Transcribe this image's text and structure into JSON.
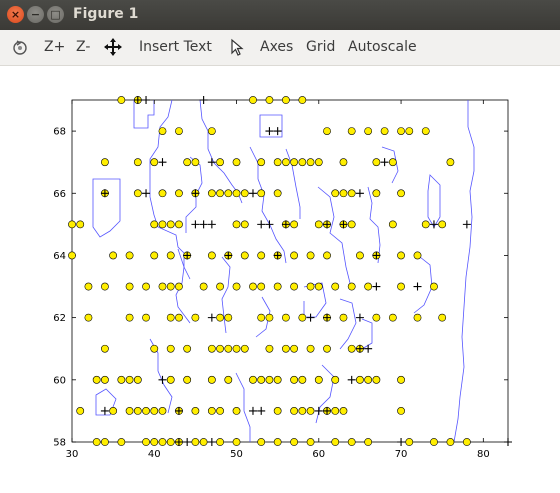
{
  "window": {
    "title": "Figure 1",
    "close_glyph": "×",
    "minimize_glyph": "−",
    "maximize_glyph": "□"
  },
  "toolbar": {
    "zoom_in_label": "Z+",
    "zoom_out_label": "Z-",
    "insert_text_label": "Insert Text",
    "axes_label": "Axes",
    "grid_label": "Grid",
    "autoscale_label": "Autoscale",
    "icons": [
      "rotate-icon",
      "pan-move-icon",
      "select-arrow-icon"
    ]
  },
  "chart_data": {
    "type": "scatter",
    "title": "",
    "xlabel": "",
    "ylabel": "",
    "xlim": [
      30,
      83
    ],
    "ylim": [
      58,
      69
    ],
    "xticks": [
      30,
      40,
      50,
      60,
      70,
      80
    ],
    "yticks": [
      58,
      60,
      62,
      64,
      66,
      68
    ],
    "xtick_labels": [
      "30",
      "40",
      "50",
      "60",
      "70",
      "80"
    ],
    "ytick_labels": [
      "58",
      "60",
      "62",
      "64",
      "66",
      "68"
    ],
    "grid": false,
    "legend": "none",
    "colors": {
      "circle_fill": "#ffee00",
      "circle_edge": "#000000",
      "contour": "#5555ff",
      "plus": "#000000"
    },
    "series": [
      {
        "marker": "circle",
        "points": [
          [
            36,
            69
          ],
          [
            38,
            69
          ],
          [
            52,
            69
          ],
          [
            54,
            69
          ],
          [
            56,
            69
          ],
          [
            58,
            69
          ],
          [
            41,
            68
          ],
          [
            43,
            68
          ],
          [
            47,
            68
          ],
          [
            61,
            68
          ],
          [
            64,
            68
          ],
          [
            66,
            68
          ],
          [
            68,
            68
          ],
          [
            70,
            68
          ],
          [
            71,
            68
          ],
          [
            73,
            68
          ],
          [
            34,
            67
          ],
          [
            38,
            67
          ],
          [
            40,
            67
          ],
          [
            44,
            67
          ],
          [
            45,
            67
          ],
          [
            48,
            67
          ],
          [
            50,
            67
          ],
          [
            53,
            67
          ],
          [
            55,
            67
          ],
          [
            56,
            67
          ],
          [
            57,
            67
          ],
          [
            58,
            67
          ],
          [
            59,
            67
          ],
          [
            60,
            67
          ],
          [
            63,
            67
          ],
          [
            67,
            67
          ],
          [
            69,
            67
          ],
          [
            76,
            67
          ],
          [
            34,
            66
          ],
          [
            38,
            66
          ],
          [
            41,
            66
          ],
          [
            43,
            66
          ],
          [
            45,
            66
          ],
          [
            47,
            66
          ],
          [
            48,
            66
          ],
          [
            49,
            66
          ],
          [
            50,
            66
          ],
          [
            51,
            66
          ],
          [
            53,
            66
          ],
          [
            55,
            66
          ],
          [
            62,
            66
          ],
          [
            63,
            66
          ],
          [
            64,
            66
          ],
          [
            67,
            66
          ],
          [
            70,
            66
          ],
          [
            30,
            65
          ],
          [
            31,
            65
          ],
          [
            40,
            65
          ],
          [
            41,
            65
          ],
          [
            42,
            65
          ],
          [
            43,
            65
          ],
          [
            50,
            65
          ],
          [
            51,
            65
          ],
          [
            56,
            65
          ],
          [
            57,
            65
          ],
          [
            60,
            65
          ],
          [
            61,
            65
          ],
          [
            63,
            65
          ],
          [
            64,
            65
          ],
          [
            69,
            65
          ],
          [
            73,
            65
          ],
          [
            75,
            65
          ],
          [
            30,
            64
          ],
          [
            35,
            64
          ],
          [
            37,
            64
          ],
          [
            40,
            64
          ],
          [
            42,
            64
          ],
          [
            44,
            64
          ],
          [
            47,
            64
          ],
          [
            49,
            64
          ],
          [
            51,
            64
          ],
          [
            53,
            64
          ],
          [
            55,
            64
          ],
          [
            57,
            64
          ],
          [
            59,
            64
          ],
          [
            61,
            64
          ],
          [
            65,
            64
          ],
          [
            67,
            64
          ],
          [
            70,
            64
          ],
          [
            72,
            64
          ],
          [
            32,
            63
          ],
          [
            34,
            63
          ],
          [
            37,
            63
          ],
          [
            39,
            63
          ],
          [
            41,
            63
          ],
          [
            42,
            63
          ],
          [
            43,
            63
          ],
          [
            46,
            63
          ],
          [
            48,
            63
          ],
          [
            50,
            63
          ],
          [
            52,
            63
          ],
          [
            53,
            63
          ],
          [
            55,
            63
          ],
          [
            57,
            63
          ],
          [
            59,
            63
          ],
          [
            60,
            63
          ],
          [
            62,
            63
          ],
          [
            64,
            63
          ],
          [
            66,
            63
          ],
          [
            70,
            63
          ],
          [
            74,
            63
          ],
          [
            32,
            62
          ],
          [
            37,
            62
          ],
          [
            39,
            62
          ],
          [
            42,
            62
          ],
          [
            43,
            62
          ],
          [
            45,
            62
          ],
          [
            48,
            62
          ],
          [
            49,
            62
          ],
          [
            53,
            62
          ],
          [
            54,
            62
          ],
          [
            56,
            62
          ],
          [
            58,
            62
          ],
          [
            61,
            62
          ],
          [
            63,
            62
          ],
          [
            67,
            62
          ],
          [
            69,
            62
          ],
          [
            72,
            62
          ],
          [
            75,
            62
          ],
          [
            34,
            61
          ],
          [
            40,
            61
          ],
          [
            42,
            61
          ],
          [
            44,
            61
          ],
          [
            47,
            61
          ],
          [
            48,
            61
          ],
          [
            49,
            61
          ],
          [
            50,
            61
          ],
          [
            51,
            61
          ],
          [
            54,
            61
          ],
          [
            56,
            61
          ],
          [
            57,
            61
          ],
          [
            59,
            61
          ],
          [
            61,
            61
          ],
          [
            64,
            61
          ],
          [
            65,
            61
          ],
          [
            33,
            60
          ],
          [
            34,
            60
          ],
          [
            36,
            60
          ],
          [
            37,
            60
          ],
          [
            38,
            60
          ],
          [
            42,
            60
          ],
          [
            44,
            60
          ],
          [
            47,
            60
          ],
          [
            49,
            60
          ],
          [
            52,
            60
          ],
          [
            53,
            60
          ],
          [
            54,
            60
          ],
          [
            55,
            60
          ],
          [
            57,
            60
          ],
          [
            58,
            60
          ],
          [
            60,
            60
          ],
          [
            62,
            60
          ],
          [
            65,
            60
          ],
          [
            66,
            60
          ],
          [
            67,
            60
          ],
          [
            70,
            60
          ],
          [
            31,
            59
          ],
          [
            35,
            59
          ],
          [
            37,
            59
          ],
          [
            38,
            59
          ],
          [
            39,
            59
          ],
          [
            40,
            59
          ],
          [
            41,
            59
          ],
          [
            43,
            59
          ],
          [
            45,
            59
          ],
          [
            47,
            59
          ],
          [
            48,
            59
          ],
          [
            50,
            59
          ],
          [
            55,
            59
          ],
          [
            57,
            59
          ],
          [
            58,
            59
          ],
          [
            59,
            59
          ],
          [
            61,
            59
          ],
          [
            62,
            59
          ],
          [
            63,
            59
          ],
          [
            70,
            59
          ],
          [
            33,
            58
          ],
          [
            34,
            58
          ],
          [
            36,
            58
          ],
          [
            39,
            58
          ],
          [
            40,
            58
          ],
          [
            41,
            58
          ],
          [
            42,
            58
          ],
          [
            43,
            58
          ],
          [
            45,
            58
          ],
          [
            46,
            58
          ],
          [
            48,
            58
          ],
          [
            50,
            58
          ],
          [
            53,
            58
          ],
          [
            55,
            58
          ],
          [
            57,
            58
          ],
          [
            59,
            58
          ],
          [
            62,
            58
          ],
          [
            64,
            58
          ],
          [
            66,
            58
          ],
          [
            71,
            58
          ],
          [
            74,
            58
          ],
          [
            76,
            58
          ],
          [
            78,
            58
          ]
        ]
      },
      {
        "marker": "plus",
        "points": [
          [
            38,
            69
          ],
          [
            39,
            69
          ],
          [
            46,
            69
          ],
          [
            54,
            68
          ],
          [
            55,
            68
          ],
          [
            41,
            67
          ],
          [
            47,
            67
          ],
          [
            68,
            67
          ],
          [
            34,
            66
          ],
          [
            39,
            66
          ],
          [
            45,
            66
          ],
          [
            52,
            66
          ],
          [
            65,
            66
          ],
          [
            45,
            65
          ],
          [
            46,
            65
          ],
          [
            47,
            65
          ],
          [
            53,
            65
          ],
          [
            54,
            65
          ],
          [
            56,
            65
          ],
          [
            61,
            65
          ],
          [
            63,
            65
          ],
          [
            74,
            65
          ],
          [
            78,
            65
          ],
          [
            44,
            64
          ],
          [
            49,
            64
          ],
          [
            55,
            64
          ],
          [
            67,
            64
          ],
          [
            67,
            63
          ],
          [
            72,
            63
          ],
          [
            47,
            62
          ],
          [
            59,
            62
          ],
          [
            61,
            62
          ],
          [
            65,
            62
          ],
          [
            65,
            61
          ],
          [
            66,
            61
          ],
          [
            41,
            60
          ],
          [
            64,
            60
          ],
          [
            34,
            59
          ],
          [
            43,
            59
          ],
          [
            52,
            59
          ],
          [
            53,
            59
          ],
          [
            60,
            59
          ],
          [
            61,
            59
          ],
          [
            43,
            58
          ],
          [
            44,
            58
          ],
          [
            47,
            58
          ],
          [
            70,
            58
          ],
          [
            83,
            58
          ]
        ]
      }
    ]
  }
}
